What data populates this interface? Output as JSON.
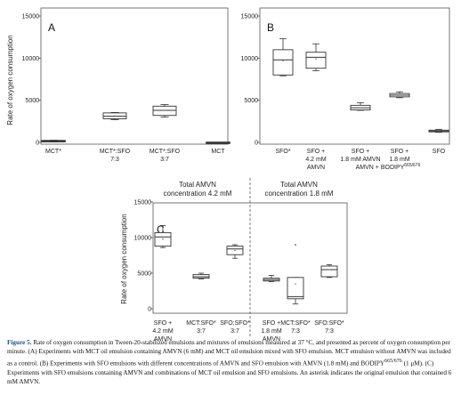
{
  "chart_data": [
    {
      "type": "boxplot",
      "panel": "A",
      "ylabel": "Rate of oxygen consumption",
      "ylim": [
        0,
        15000
      ],
      "yticks": [
        0,
        5000,
        10000,
        15000
      ],
      "categories": [
        {
          "lines": [
            "MCT*"
          ]
        },
        {
          "lines": [
            "MCT*:SFO",
            "7:3"
          ]
        },
        {
          "lines": [
            "MCT*:SFO",
            "3:7"
          ]
        },
        {
          "lines": [
            "MCT"
          ]
        }
      ],
      "boxes": [
        {
          "min": 50,
          "q1": 100,
          "median": 150,
          "q3": 200,
          "max": 250,
          "mean": 150
        },
        {
          "min": 2700,
          "q1": 2800,
          "median": 3100,
          "q3": 3500,
          "max": 3550,
          "mean": 3150
        },
        {
          "min": 3000,
          "q1": 3200,
          "median": 3800,
          "q3": 4300,
          "max": 4500,
          "mean": 3800
        },
        {
          "min": 0,
          "q1": 0,
          "median": 0,
          "q3": 0,
          "max": 0,
          "mean": 0
        }
      ]
    },
    {
      "type": "boxplot",
      "panel": "B",
      "ylim": [
        0,
        15000
      ],
      "yticks": [
        0,
        5000,
        10000,
        15000
      ],
      "categories": [
        {
          "lines": [
            "SFO*"
          ]
        },
        {
          "lines": [
            "SFO +",
            "4.2 mM",
            "AMVN"
          ]
        },
        {
          "lines": [
            "SFO +",
            "1.8 mM AMVN"
          ]
        },
        {
          "lines": [
            "SFO +",
            "1.8 mM"
          ]
        },
        {
          "lines": [
            "SFO"
          ]
        }
      ],
      "group_label": "AMVN + BODIPY",
      "group_label_sup": "665/676",
      "boxes": [
        {
          "min": 7900,
          "q1": 8000,
          "median": 9800,
          "q3": 11000,
          "max": 12300,
          "mean": 9700
        },
        {
          "min": 8500,
          "q1": 8800,
          "median": 10100,
          "q3": 10700,
          "max": 11700,
          "mean": 9900
        },
        {
          "min": 3800,
          "q1": 3850,
          "median": 4100,
          "q3": 4400,
          "max": 4700,
          "mean": 4100
        },
        {
          "min": 5300,
          "q1": 5400,
          "median": 5600,
          "q3": 5800,
          "max": 6000,
          "mean": 5600
        },
        {
          "min": 1200,
          "q1": 1250,
          "median": 1350,
          "q3": 1450,
          "max": 1550,
          "mean": 1400
        }
      ]
    },
    {
      "type": "boxplot",
      "panel": "C",
      "ylabel": "Rate of oxygen consumption",
      "ylim": [
        0,
        15000
      ],
      "yticks": [
        0,
        5000,
        10000,
        15000
      ],
      "group_titles": [
        {
          "lines": [
            "Total AMVN",
            "concentration 4.2 mM"
          ]
        },
        {
          "lines": [
            "Total AMVN",
            "concentration 1.8 mM"
          ]
        }
      ],
      "categories": [
        {
          "lines": [
            "SFO +",
            "4.2 mM",
            "AMVN"
          ]
        },
        {
          "lines": [
            "MCT:SFO*",
            "3:7"
          ]
        },
        {
          "lines": [
            "SFO:SFO*",
            "3:7"
          ]
        },
        {
          "lines": [
            "SFO +",
            "1.8 mM",
            "AMVN"
          ]
        },
        {
          "lines": [
            "MCT:SFO*",
            "7:3"
          ]
        },
        {
          "lines": [
            "SFO:SFO*",
            "7:3"
          ]
        }
      ],
      "boxes": [
        {
          "min": 8600,
          "q1": 8800,
          "median": 10100,
          "q3": 10700,
          "max": 11700,
          "mean": 9800
        },
        {
          "min": 4200,
          "q1": 4300,
          "median": 4500,
          "q3": 4800,
          "max": 5000,
          "mean": 4500
        },
        {
          "min": 7100,
          "q1": 7600,
          "median": 8400,
          "q3": 8800,
          "max": 9000,
          "mean": 8200
        },
        {
          "min": 3800,
          "q1": 3900,
          "median": 4100,
          "q3": 4300,
          "max": 4700,
          "mean": 4100
        },
        {
          "min": 700,
          "q1": 1400,
          "median": 1700,
          "q3": 4400,
          "max": 4400,
          "mean": 3500
        },
        {
          "min": 4400,
          "q1": 4500,
          "median": 5500,
          "q3": 6000,
          "max": 6200,
          "mean": 5500
        }
      ],
      "outliers": [
        {
          "box": 4,
          "value": 9000
        }
      ]
    }
  ],
  "caption": {
    "label": "Figure 5.",
    "parts": [
      " Rate of oxygen consumption in Tween-20-stabilized emulsions and mixtures of emulsions measured at 37 °C, and presented as percent of oxygen consumption per minute. (A) Experiments with MCT oil emulsion containing AMVN (6 mM) and MCT oil emulsion mixed with SFO emulsion. MCT emulsion without AMVN was included as a control. (B) Experiments with SFO emulsions with different concentrations of AMVN and SFO emulsion with AMVN (1.8 mM) and BODIPY",
      "665/676",
      " (1 μM). (C) Experiments with SFO emulsions containing AMVN and combinations of MCT oil emulsion and SFO emulsions. An asterisk indicates the original emulsion that contained 6 mM AMVN."
    ]
  }
}
